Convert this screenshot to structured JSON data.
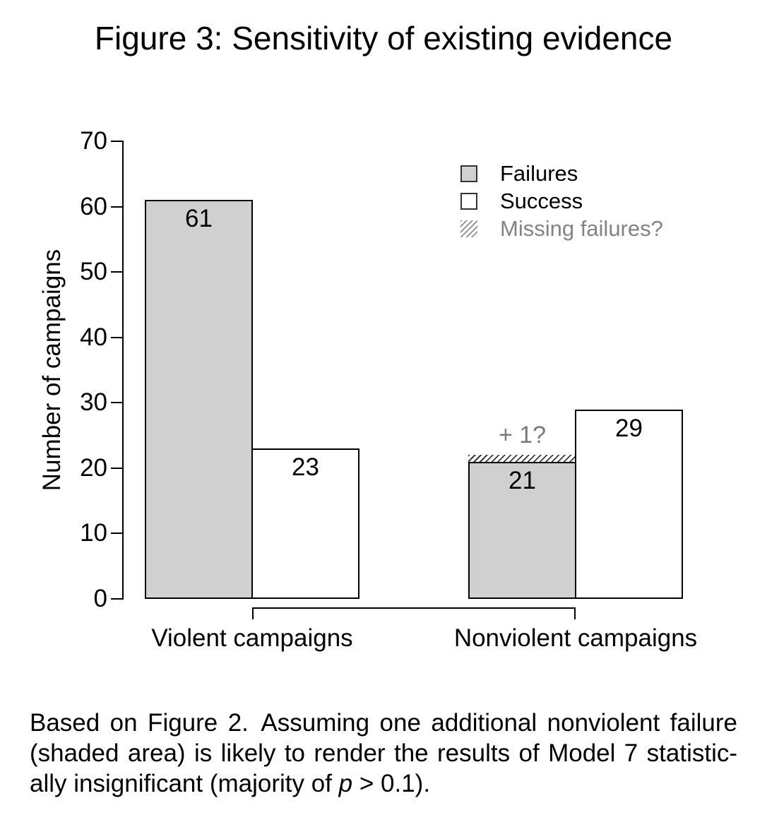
{
  "title": "Figure 3: Sensitivity of existing evidence",
  "chart_data": {
    "type": "bar",
    "title": "Figure 3: Sensitivity of existing evidence",
    "ylabel": "Number of campaigns",
    "xlabel": "",
    "ylim": [
      0,
      70
    ],
    "yticks": [
      0,
      10,
      20,
      30,
      40,
      50,
      60,
      70
    ],
    "grid": false,
    "legend_position": "top-right",
    "categories": [
      "Violent campaigns",
      "Nonviolent campaigns"
    ],
    "series": [
      {
        "name": "Failures",
        "values": [
          61,
          21
        ],
        "fill": "#d0d0d0",
        "stroke": "#000000"
      },
      {
        "name": "Success",
        "values": [
          23,
          29
        ],
        "fill": "#ffffff",
        "stroke": "#000000"
      }
    ],
    "annotation": {
      "label": "+ 1?",
      "value": 1,
      "target_category": "Nonviolent campaigns",
      "target_series": "Failures",
      "style": "hatched"
    },
    "legend": [
      {
        "label": "Failures",
        "swatch": "gray-filled-square"
      },
      {
        "label": "Success",
        "swatch": "white-square"
      },
      {
        "label": "Missing failures?",
        "swatch": "hatched-square",
        "muted": true
      }
    ]
  },
  "caption": {
    "line1": "Based on Figure 2. Assuming one additional nonviolent failure",
    "line2": "(shaded area) is likely to render the results of Model 7 statistic-",
    "line3_pre": "ally insignificant (majority of ",
    "line3_italic": "p",
    "line3_post": " > 0.1)."
  },
  "colors": {
    "bar_gray": "#d0d0d0",
    "bar_stroke": "#000000",
    "muted_text": "#828282",
    "hatch_dark": "#3a3a3a",
    "hatch_light": "#8c8c8c",
    "axis": "#000000"
  }
}
